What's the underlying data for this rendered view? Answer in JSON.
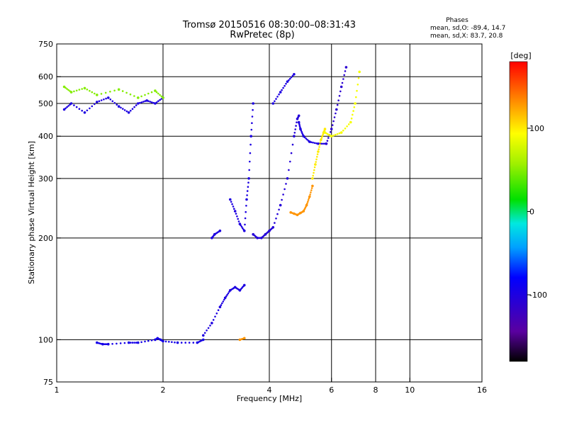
{
  "chart_data": {
    "type": "scatter",
    "title": "Tromsø 20150516 08:30:00–08:31:43",
    "subtitle": "RwPretec (8p)",
    "xlabel": "Frequency [MHz]",
    "ylabel": "Stationary phase Virtual Height [km]",
    "x_scale": "log",
    "y_scale": "log",
    "xlim": [
      1,
      16
    ],
    "ylim": [
      75,
      750
    ],
    "x_ticks": [
      1,
      2,
      4,
      6,
      8,
      10,
      16
    ],
    "x_tick_labels": [
      "1",
      "2",
      "4",
      "6",
      "8",
      "10",
      "16"
    ],
    "x_grid": [
      2,
      4,
      6,
      8,
      10
    ],
    "y_ticks": [
      75,
      100,
      200,
      300,
      400,
      500,
      600,
      750
    ],
    "y_tick_labels": [
      "75",
      "100",
      "200",
      "300",
      "400",
      "500",
      "600",
      "750"
    ],
    "y_grid": [
      100,
      200,
      300,
      400,
      500,
      600
    ],
    "stats": {
      "heading": "Phases",
      "line_o": "mean, sd,O: -89.4, 14.7",
      "line_x": "mean, sd,X:  83.7, 20.8"
    },
    "colorbar": {
      "label": "[deg]",
      "range": [
        -180,
        180
      ],
      "ticks": [
        100,
        0,
        -100
      ],
      "tick_labels": [
        "100",
        "0",
        "-100"
      ]
    },
    "series": [
      {
        "mode": "O",
        "segments": [
          {
            "f": [
              1.05,
              1.1,
              1.2,
              1.3,
              1.4,
              1.5,
              1.6,
              1.7,
              1.8,
              1.9,
              2.0
            ],
            "h": [
              480,
              500,
              470,
              505,
              520,
              490,
              470,
              500,
              510,
              500,
              520
            ],
            "phase": -100
          },
          {
            "f": [
              1.3,
              1.35,
              1.4,
              1.6,
              1.7,
              1.9,
              1.93,
              1.97,
              2.0,
              2.2,
              2.5,
              2.6
            ],
            "h": [
              98,
              97,
              97,
              98,
              98,
              100,
              101,
              100,
              99,
              98,
              98,
              100
            ],
            "phase": -95
          },
          {
            "f": [
              2.6,
              2.75,
              2.9,
              3.0,
              3.1,
              3.2,
              3.3,
              3.4
            ],
            "h": [
              103,
              112,
              125,
              133,
              140,
              143,
              140,
              145
            ],
            "phase": -100
          },
          {
            "f": [
              2.75,
              2.8,
              2.9
            ],
            "h": [
              200,
              205,
              210
            ],
            "phase": -100
          },
          {
            "f": [
              3.1,
              3.2,
              3.3,
              3.4,
              3.45,
              3.5,
              3.55,
              3.6
            ],
            "h": [
              260,
              240,
              220,
              210,
              260,
              300,
              400,
              500
            ],
            "phase": -100
          },
          {
            "f": [
              3.6,
              3.7,
              3.8,
              3.9,
              4.0,
              4.1,
              4.3,
              4.5,
              4.7,
              4.8,
              4.85
            ],
            "h": [
              205,
              200,
              200,
              205,
              210,
              215,
              250,
              300,
              400,
              450,
              460
            ],
            "phase": -105
          },
          {
            "f": [
              4.85,
              4.9,
              5.0,
              5.2,
              5.5,
              5.8
            ],
            "h": [
              440,
              420,
              400,
              385,
              380,
              380
            ],
            "phase": -100
          },
          {
            "f": [
              5.8,
              6.0,
              6.2,
              6.4,
              6.6
            ],
            "h": [
              380,
              420,
              480,
              560,
              640
            ],
            "phase": -110
          },
          {
            "f": [
              4.1,
              4.3,
              4.5,
              4.7
            ],
            "h": [
              500,
              540,
              580,
              610
            ],
            "phase": -100
          }
        ]
      },
      {
        "mode": "X",
        "segments": [
          {
            "f": [
              1.05,
              1.1,
              1.2,
              1.3,
              1.5,
              1.7,
              1.9,
              2.0
            ],
            "h": [
              560,
              540,
              555,
              530,
              550,
              520,
              545,
              520
            ],
            "phase": 50
          },
          {
            "f": [
              3.3,
              3.4
            ],
            "h": [
              100,
              101
            ],
            "phase": 130
          },
          {
            "f": [
              4.6,
              4.7,
              4.8,
              4.9,
              5.0,
              5.1,
              5.2,
              5.3
            ],
            "h": [
              238,
              236,
              234,
              237,
              240,
              250,
              265,
              285
            ],
            "phase": 130
          },
          {
            "f": [
              5.3,
              5.4,
              5.5,
              5.6,
              5.7,
              5.75
            ],
            "h": [
              300,
              330,
              360,
              390,
              410,
              420
            ],
            "phase": 100
          },
          {
            "f": [
              5.75,
              6.0,
              6.4,
              6.8,
              7.0,
              7.2
            ],
            "h": [
              410,
              400,
              410,
              440,
              500,
              620
            ],
            "phase": 90
          }
        ]
      }
    ]
  }
}
